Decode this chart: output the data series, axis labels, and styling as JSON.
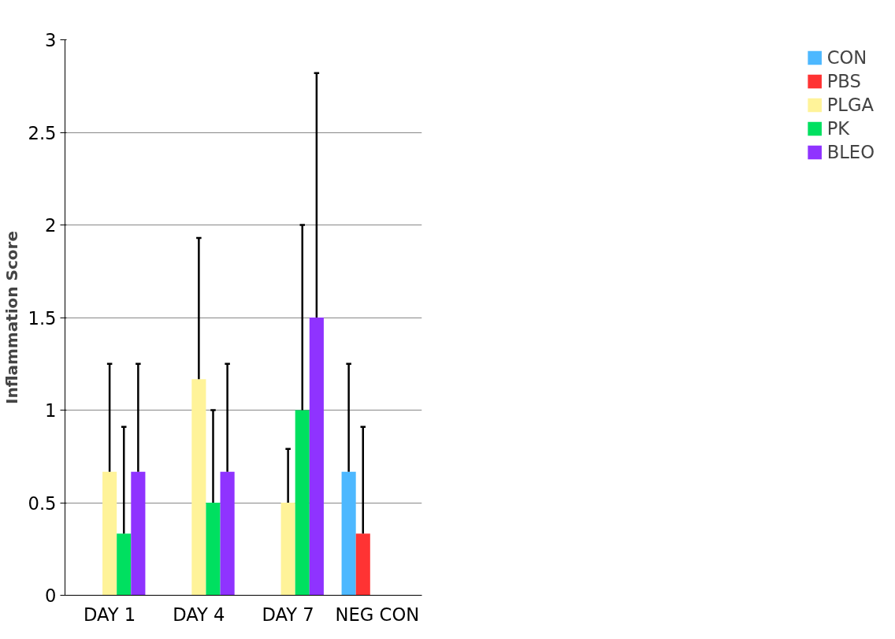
{
  "chart_data": {
    "type": "bar",
    "ylabel": "Inflammation Score",
    "categories": [
      "DAY 1",
      "DAY 4",
      "DAY 7",
      "NEG CON"
    ],
    "series": [
      {
        "name": "CON",
        "color": "#4db8ff",
        "values": [
          null,
          null,
          null,
          0.667
        ],
        "errors": [
          null,
          null,
          null,
          [
            0.667,
            1.25
          ]
        ]
      },
      {
        "name": "PBS",
        "color": "#ff3333",
        "values": [
          null,
          null,
          null,
          0.333
        ],
        "errors": [
          null,
          null,
          null,
          [
            0.333,
            0.91
          ]
        ]
      },
      {
        "name": "PLGA",
        "color": "#fff399",
        "values": [
          0.667,
          1.167,
          0.5,
          null
        ],
        "errors": [
          [
            0.667,
            1.25
          ],
          [
            1.167,
            1.93
          ],
          [
            0.5,
            0.79
          ],
          null
        ]
      },
      {
        "name": "PK",
        "color": "#00e060",
        "values": [
          0.333,
          0.5,
          1.0,
          null
        ],
        "errors": [
          [
            0.333,
            0.91
          ],
          [
            0.5,
            1.0
          ],
          [
            1.0,
            2.0
          ],
          null
        ]
      },
      {
        "name": "BLEO",
        "color": "#8f33ff",
        "values": [
          0.667,
          0.667,
          1.5,
          null
        ],
        "errors": [
          [
            0.667,
            1.25
          ],
          [
            0.667,
            1.25
          ],
          [
            1.5,
            2.82
          ],
          null
        ]
      }
    ],
    "ylim": [
      0,
      3
    ],
    "yticks": [
      0,
      0.5,
      1,
      1.5,
      2,
      2.5,
      3
    ],
    "grid": "y",
    "legend": "right"
  }
}
